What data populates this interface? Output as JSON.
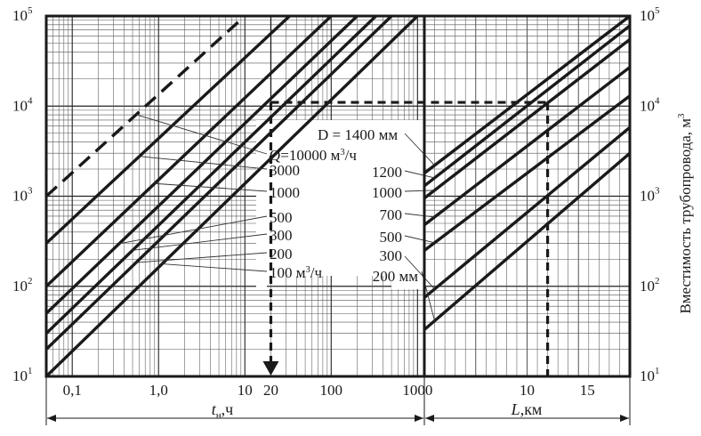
{
  "chart_data": [
    {
      "type": "line",
      "title": "",
      "xlabel": "t",
      "xlabel_sub": "н",
      "xlabel_unit": ",ч",
      "ylabel": "",
      "xscale": "log",
      "yscale": "log",
      "xlim": [
        0.05,
        1200
      ],
      "ylim": [
        10,
        100000
      ],
      "grid": true,
      "x_ticks": [
        {
          "value": 0.1,
          "label": "0,1"
        },
        {
          "value": 1,
          "label": "1,0"
        },
        {
          "value": 10,
          "label": "10"
        },
        {
          "value": 20,
          "label": "20"
        },
        {
          "value": 100,
          "label": "100"
        },
        {
          "value": 1000,
          "label": "1000"
        }
      ],
      "y_ticks": [
        {
          "value": 10,
          "label": "10",
          "exp": "1"
        },
        {
          "value": 100,
          "label": "10",
          "exp": "2"
        },
        {
          "value": 1000,
          "label": "10",
          "exp": "3"
        },
        {
          "value": 10000,
          "label": "10",
          "exp": "4"
        },
        {
          "value": 100000,
          "label": "10",
          "exp": "5"
        }
      ],
      "series": [
        {
          "name": "Q=10000 м³/ч",
          "x": [
            0.05,
            10
          ],
          "y": [
            1000,
            100000
          ],
          "style": "dashed"
        },
        {
          "name": "3000",
          "x": [
            0.05,
            33
          ],
          "y": [
            300,
            100000
          ]
        },
        {
          "name": "1000",
          "x": [
            0.05,
            100
          ],
          "y": [
            100,
            100000
          ]
        },
        {
          "name": "500",
          "x": [
            0.05,
            200
          ],
          "y": [
            50,
            100000
          ]
        },
        {
          "name": "300",
          "x": [
            0.05,
            330
          ],
          "y": [
            30,
            100000
          ]
        },
        {
          "name": "200",
          "x": [
            0.05,
            500
          ],
          "y": [
            20,
            100000
          ]
        },
        {
          "name": "100 м³/ч",
          "x": [
            0.05,
            1000
          ],
          "y": [
            10,
            100000
          ]
        }
      ],
      "series_labels": [
        {
          "text": "Q=10000 м",
          "sup": "3",
          "tail": "/ч"
        },
        {
          "text": "3000"
        },
        {
          "text": "1000"
        },
        {
          "text": "500"
        },
        {
          "text": "300"
        },
        {
          "text": "200"
        },
        {
          "text": "100 м",
          "sup": "3",
          "tail": "/ч"
        }
      ],
      "example": {
        "t": 20,
        "volume": 11000
      }
    },
    {
      "type": "line",
      "title": "",
      "xlabel": "L",
      "xlabel_unit": ",км",
      "ylabel": "Вместимость трубопровода, м",
      "ylabel_sup": "3",
      "xscale": "linear",
      "yscale": "log",
      "xlim": [
        0,
        20
      ],
      "ylim": [
        10,
        100000
      ],
      "grid": true,
      "x_ticks": [
        {
          "value": 10,
          "label": "10"
        },
        {
          "value": 15,
          "label": "15"
        }
      ],
      "y_ticks": [
        {
          "value": 10,
          "label": "10",
          "exp": "1"
        },
        {
          "value": 100,
          "label": "10",
          "exp": "2"
        },
        {
          "value": 1000,
          "label": "10",
          "exp": "3"
        },
        {
          "value": 10000,
          "label": "10",
          "exp": "4"
        },
        {
          "value": 100000,
          "label": "10",
          "exp": "5"
        }
      ],
      "series": [
        {
          "name": "D = 1400 мм",
          "x": [
            0,
            20
          ],
          "y": [
            1800,
            100000
          ]
        },
        {
          "name": "1200",
          "x": [
            0,
            20
          ],
          "y": [
            1300,
            78000
          ]
        },
        {
          "name": "1000",
          "x": [
            0,
            20
          ],
          "y": [
            950,
            55000
          ]
        },
        {
          "name": "700",
          "x": [
            0,
            20
          ],
          "y": [
            480,
            27000
          ]
        },
        {
          "name": "500",
          "x": [
            0,
            20
          ],
          "y": [
            250,
            13000
          ]
        },
        {
          "name": "300",
          "x": [
            0,
            20
          ],
          "y": [
            75,
            5800
          ]
        },
        {
          "name": "200 мм",
          "x": [
            0,
            20
          ],
          "y": [
            33,
            3000
          ]
        }
      ],
      "series_labels": [
        {
          "text": "D  =  1400 мм"
        },
        {
          "text": "1200"
        },
        {
          "text": "1000"
        },
        {
          "text": "700"
        },
        {
          "text": "500"
        },
        {
          "text": "300"
        },
        {
          "text": "200 мм"
        }
      ],
      "example": {
        "L": 12,
        "volume": 11000
      }
    }
  ]
}
